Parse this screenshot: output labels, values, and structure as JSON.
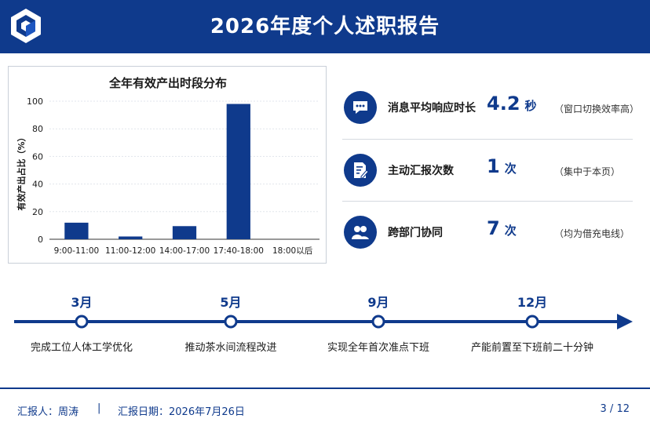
{
  "header": {
    "title": "2026年度个人述职报告"
  },
  "colors": {
    "brand": "#0f3a8c",
    "white": "#ffffff"
  },
  "chart_data": {
    "type": "bar",
    "title": "全年有效产出时段分布",
    "ylabel": "有效产出占比（%）",
    "xlabel": "",
    "categories": [
      "9:00-11:00",
      "11:00-12:00",
      "14:00-17:00",
      "17:40-18:00",
      "18:00以后"
    ],
    "values": [
      12,
      2,
      9.5,
      98,
      0
    ],
    "ylim": [
      0,
      100
    ],
    "yticks": [
      0,
      20,
      40,
      60,
      80,
      100
    ],
    "grid": true,
    "color": "#0f3a8c"
  },
  "metrics": [
    {
      "icon": "chat-bubble-icon",
      "label": "消息平均响应时长",
      "value": "4.2",
      "unit": "秒",
      "note": "（窗口切换效率高）"
    },
    {
      "icon": "document-pen-icon",
      "label": "主动汇报次数",
      "value": "1",
      "unit": "次",
      "note": "（集中于本页）"
    },
    {
      "icon": "people-icon",
      "label": "跨部门协同",
      "value": "7",
      "unit": "次",
      "note": "（均为借充电线）"
    }
  ],
  "timeline": [
    {
      "month": "3月",
      "text": "完成工位人体工学优化"
    },
    {
      "month": "5月",
      "text": "推动茶水间流程改进"
    },
    {
      "month": "9月",
      "text": "实现全年首次准点下班"
    },
    {
      "month": "12月",
      "text": "产能前置至下班前二十分钟"
    }
  ],
  "footer": {
    "reporter": "汇报人：周涛",
    "divider": "|",
    "date": "汇报日期：2026年7月26日",
    "page": "3 / 12"
  }
}
